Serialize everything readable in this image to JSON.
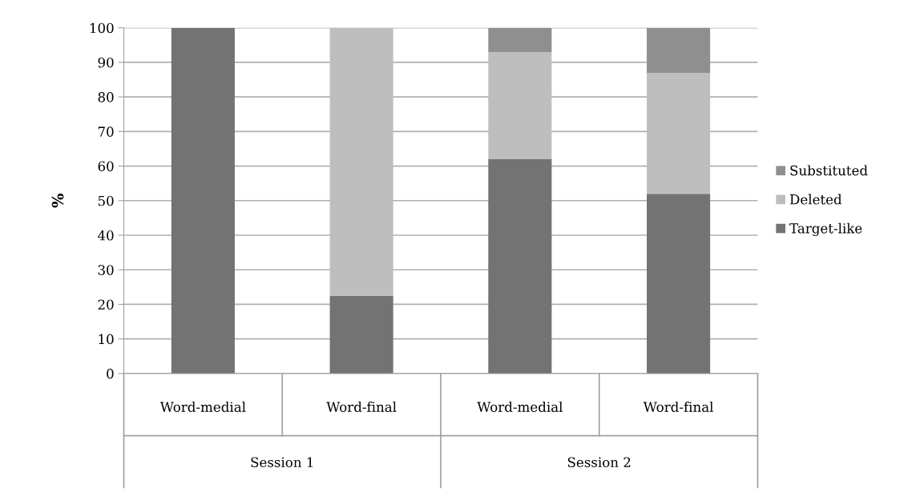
{
  "chart_data": {
    "type": "bar",
    "stacked": true,
    "ylabel": "%",
    "categories": [
      "Word-medial",
      "Word-final",
      "Word-medial",
      "Word-final"
    ],
    "series": [
      {
        "name": "Target-like",
        "color": "#737373",
        "values": [
          100,
          22.5,
          62,
          52
        ]
      },
      {
        "name": "Deleted",
        "color": "#bebebe",
        "values": [
          0,
          77.5,
          31,
          35
        ]
      },
      {
        "name": "Substituted",
        "color": "#8f8f8f",
        "values": [
          0,
          0,
          7,
          13
        ]
      }
    ],
    "annotations": [
      "Session 1",
      "Session 2"
    ],
    "ylim": [
      0,
      100
    ],
    "yticks": [
      0,
      10,
      20,
      30,
      40,
      50,
      60,
      70,
      80,
      90,
      100
    ],
    "grid": "y",
    "legend": "right"
  }
}
